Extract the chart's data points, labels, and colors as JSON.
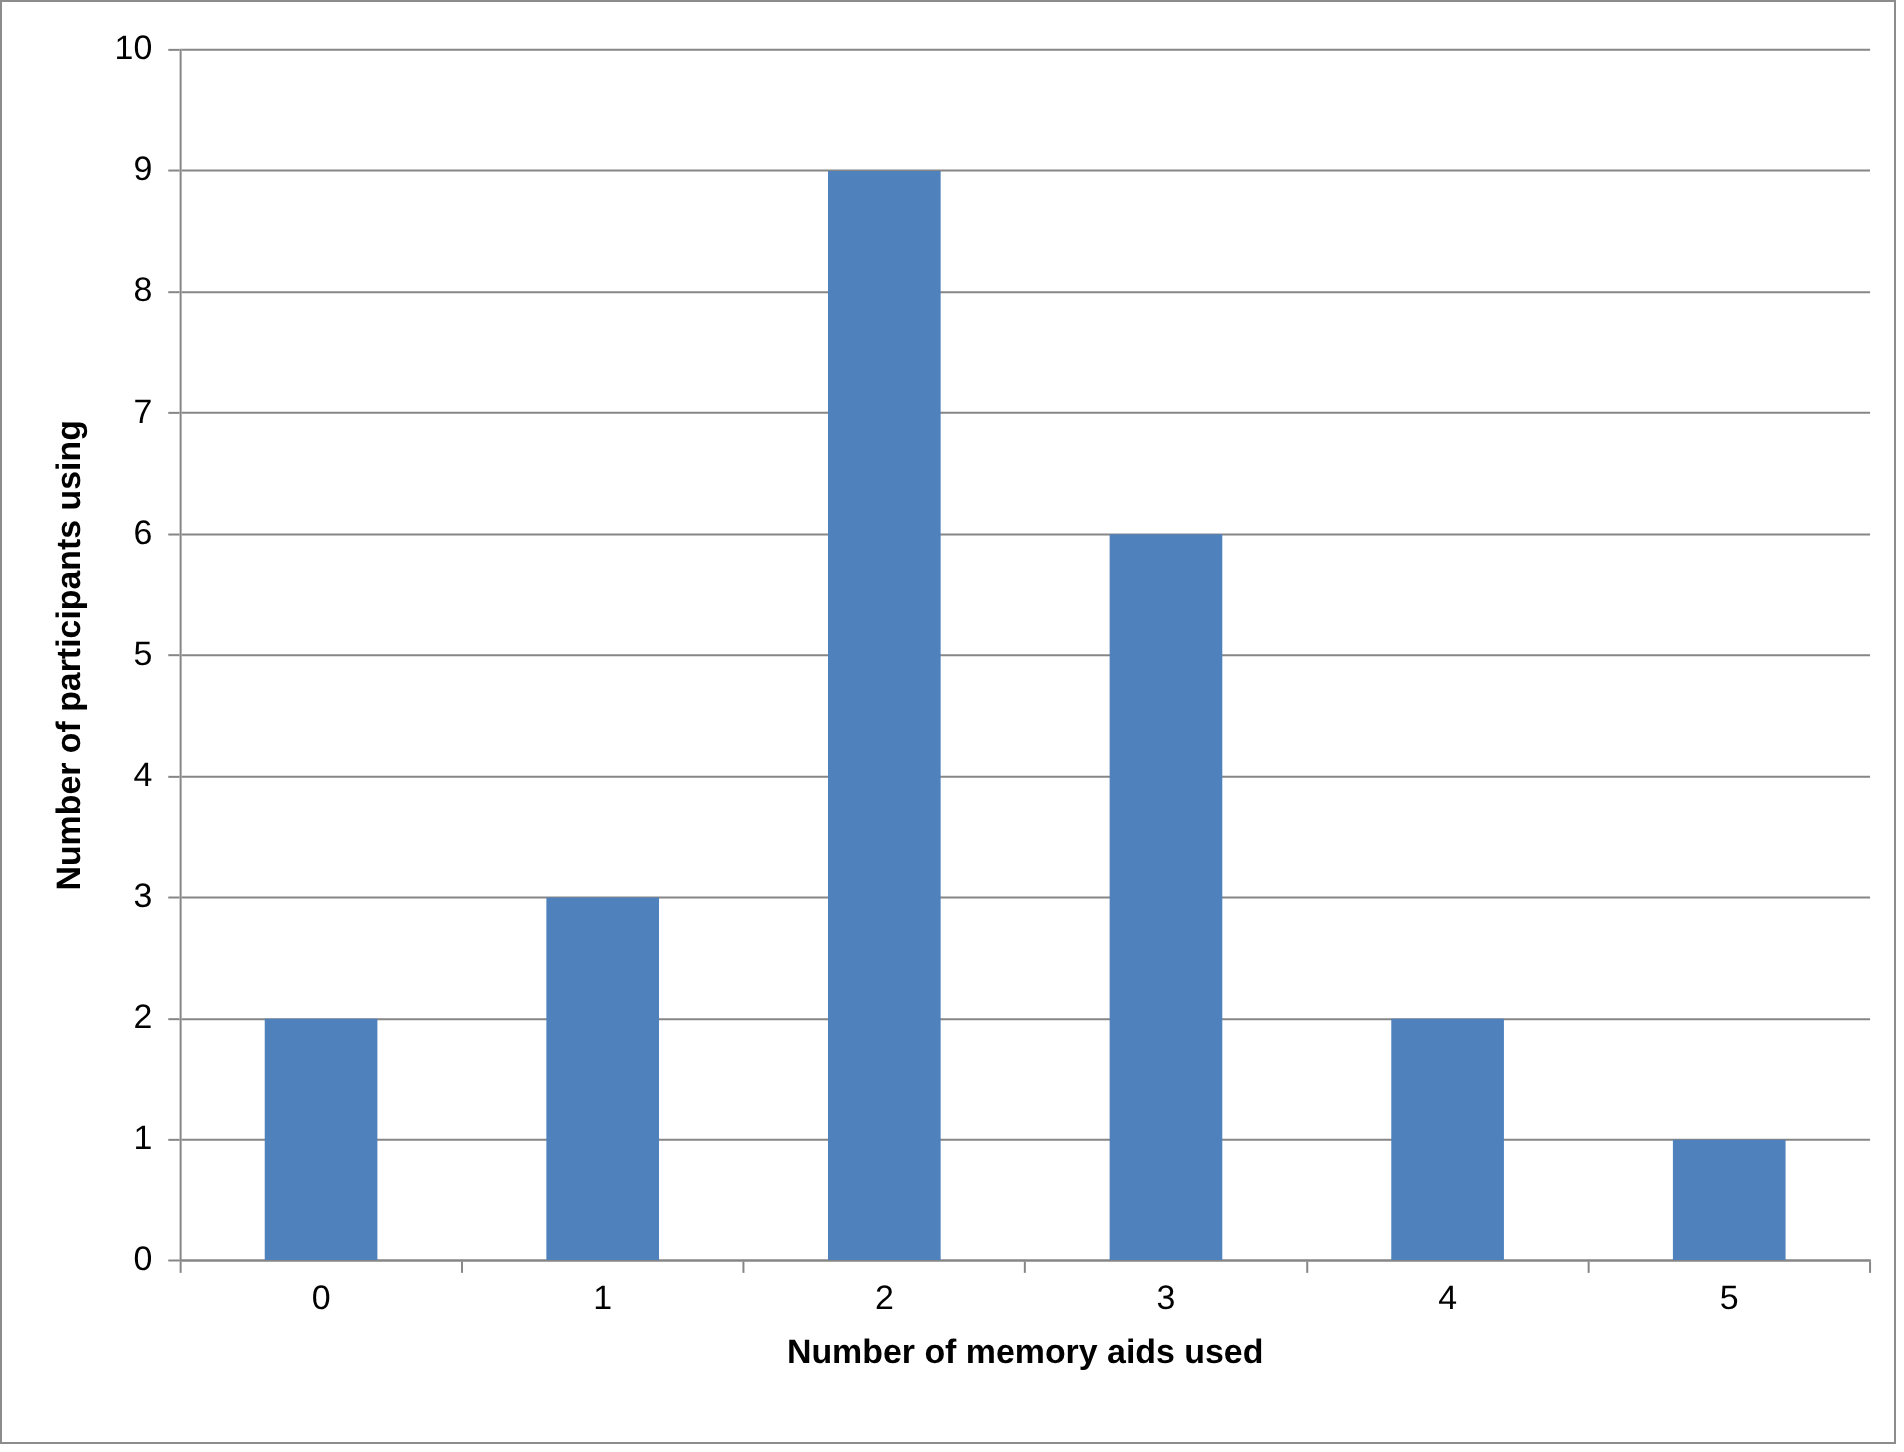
{
  "chart_data": {
    "type": "bar",
    "xlabel": "Number of memory aids used",
    "ylabel": "Number of participants using",
    "categories": [
      "0",
      "1",
      "2",
      "3",
      "4",
      "5"
    ],
    "values": [
      2,
      3,
      9,
      6,
      2,
      1
    ],
    "color": "#4f81bd",
    "ylim": [
      0,
      10
    ],
    "yticks": [
      0,
      1,
      2,
      3,
      4,
      5,
      6,
      7,
      8,
      9,
      10
    ],
    "grid": "y"
  }
}
